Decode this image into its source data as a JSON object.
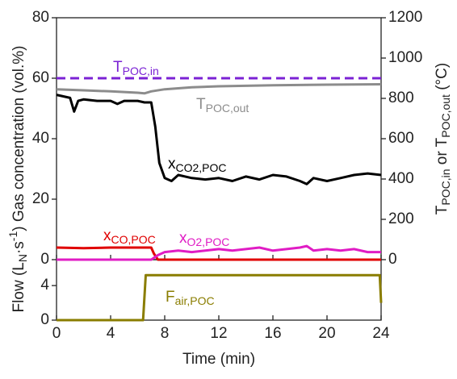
{
  "chart_data": [
    {
      "type": "line",
      "xlim": [
        0,
        24
      ],
      "xticks": [
        0,
        4,
        8,
        12,
        16,
        20,
        24
      ],
      "ylim": [
        0,
        80
      ],
      "yticks": [
        0,
        20,
        40,
        60,
        80
      ],
      "y2lim": [
        0,
        1200
      ],
      "y2ticks": [
        0,
        200,
        400,
        600,
        800,
        1000,
        1200
      ],
      "ylabel_parts": [
        {
          "text": "Flow (L"
        },
        {
          "sub": "N"
        },
        {
          "text": "·s"
        },
        {
          "sup": "-1"
        },
        {
          "text": ") Gas concentration (vol.%)"
        }
      ],
      "y2label_parts": [
        {
          "text": "T"
        },
        {
          "sub": "POC,in"
        },
        {
          "text": " or T"
        },
        {
          "sub": "POC,out"
        },
        {
          "text": " (°C)"
        }
      ],
      "series": [
        {
          "name_parts": [
            {
              "text": "T"
            },
            {
              "sub": "POC,in"
            }
          ],
          "color": "#7b22d4",
          "dashed": true,
          "axis": "y2",
          "x": [
            0,
            24
          ],
          "values": [
            900,
            900
          ]
        },
        {
          "name_parts": [
            {
              "text": "T"
            },
            {
              "sub": "POC,out"
            }
          ],
          "color": "#8c8c8c",
          "axis": "y2",
          "x": [
            0,
            2,
            4,
            6,
            6.5,
            7,
            8,
            10,
            12,
            16,
            20,
            24
          ],
          "values": [
            845,
            840,
            835,
            828,
            825,
            835,
            845,
            855,
            860,
            865,
            868,
            870
          ]
        },
        {
          "name_parts": [
            {
              "text": "x"
            },
            {
              "sub": "CO2,POC"
            }
          ],
          "color": "#000000",
          "x": [
            0,
            0.5,
            1,
            1.3,
            1.6,
            2,
            3,
            4,
            4.5,
            5,
            6,
            6.5,
            7,
            7.3,
            7.6,
            8,
            8.5,
            9,
            10,
            11,
            12,
            13,
            14,
            15,
            16,
            17,
            18,
            18.5,
            19,
            20,
            21,
            22,
            23,
            24
          ],
          "values": [
            54.5,
            54,
            53.5,
            49,
            52.5,
            53,
            52.5,
            52.5,
            51.5,
            52.5,
            52.5,
            52,
            52,
            44,
            32,
            27,
            26,
            28,
            27,
            26.5,
            27,
            26,
            27.5,
            26.5,
            28,
            27.5,
            26,
            25,
            27,
            26,
            27,
            28,
            28.5,
            28
          ]
        },
        {
          "name_parts": [
            {
              "text": "x"
            },
            {
              "sub": "CO,POC"
            }
          ],
          "color": "#e00000",
          "x": [
            0,
            2,
            4,
            6,
            7,
            7.2,
            7.5,
            24
          ],
          "values": [
            4,
            3.8,
            4,
            4,
            4,
            2,
            0,
            0
          ]
        },
        {
          "name_parts": [
            {
              "text": "x"
            },
            {
              "sub": "O2,POC"
            }
          ],
          "color": "#e01cc4",
          "x": [
            0,
            7,
            7.5,
            8,
            9,
            10,
            11,
            12,
            13,
            14,
            15,
            16,
            17,
            18,
            18.5,
            19,
            20,
            21,
            22,
            23,
            24
          ],
          "values": [
            0,
            0,
            1.5,
            2.5,
            3,
            2.5,
            3,
            3.5,
            3,
            3.5,
            4,
            3,
            3.5,
            4,
            4.5,
            3,
            3.5,
            3,
            3.5,
            2.5,
            2.5
          ]
        }
      ]
    },
    {
      "type": "line",
      "xlim": [
        0,
        24
      ],
      "xticks": [
        0,
        4,
        8,
        12,
        16,
        20,
        24
      ],
      "xlabel": "Time (min)",
      "ylim": [
        0,
        7
      ],
      "yticks": [
        0,
        4
      ],
      "series": [
        {
          "name_parts": [
            {
              "text": "F"
            },
            {
              "sub": "air,POC"
            }
          ],
          "color": "#8a7d00",
          "x": [
            0,
            6.4,
            6.6,
            23.9,
            24
          ],
          "values": [
            0,
            0,
            5.2,
            5.2,
            2
          ]
        }
      ]
    }
  ]
}
